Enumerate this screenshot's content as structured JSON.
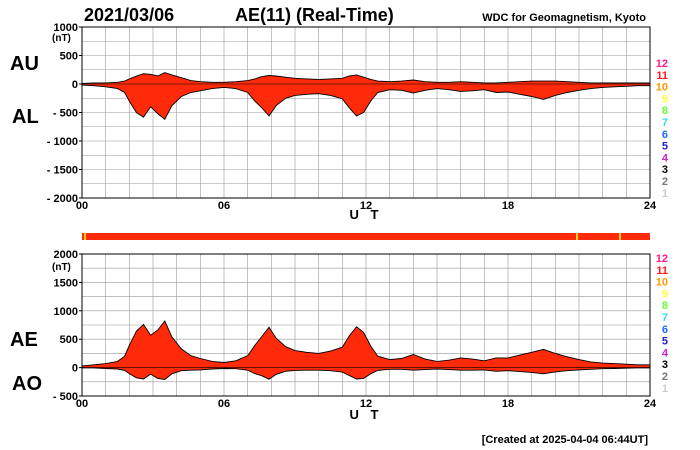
{
  "header": {
    "date": "2021/03/06",
    "title": "AE(11) (Real-Time)",
    "source": "WDC for Geomagnetism, Kyoto"
  },
  "footer": {
    "created": "[Created at 2025-04-04 06:44UT]"
  },
  "colors": {
    "fill": "#ff2a0a",
    "station_bar": "#ff2a0a",
    "station_bar_marks": "#ffd21e"
  },
  "station_legend": [
    {
      "label": "12",
      "color": "#ff1a8c"
    },
    {
      "label": "11",
      "color": "#ff1a1a"
    },
    {
      "label": "10",
      "color": "#ff9900"
    },
    {
      "label": "9",
      "color": "#ffff33"
    },
    {
      "label": "8",
      "color": "#66ff33"
    },
    {
      "label": "7",
      "color": "#33ddee"
    },
    {
      "label": "6",
      "color": "#1e6bff"
    },
    {
      "label": "5",
      "color": "#2222cc"
    },
    {
      "label": "4",
      "color": "#cc22cc"
    },
    {
      "label": "3",
      "color": "#000000"
    },
    {
      "label": "2",
      "color": "#777777"
    },
    {
      "label": "1",
      "color": "#cccccc"
    }
  ],
  "chart_data": [
    {
      "type": "area",
      "panel_labels": {
        "upper": "AU",
        "lower": "AL"
      },
      "ylabel": "(nT)",
      "xlabel": "U T",
      "xlim": [
        0,
        24
      ],
      "ylim": [
        -2000,
        1000
      ],
      "x_ticks": [
        "00",
        "06",
        "12",
        "18",
        "24"
      ],
      "y_ticks": [
        "1000",
        "500",
        "0",
        "- 500",
        "- 1000",
        "- 1500",
        "- 2000"
      ],
      "series": [
        {
          "name": "AU",
          "x": [
            0,
            0.5,
            1,
            1.5,
            1.8,
            2,
            2.3,
            2.6,
            2.9,
            3.2,
            3.5,
            3.8,
            4.2,
            4.6,
            5,
            5.5,
            6,
            6.5,
            7,
            7.3,
            7.6,
            7.9,
            8.2,
            8.6,
            9,
            9.5,
            10,
            10.5,
            11,
            11.3,
            11.6,
            11.9,
            12.2,
            12.5,
            13,
            13.5,
            14,
            14.5,
            15,
            15.5,
            16,
            16.5,
            17,
            17.5,
            18,
            18.5,
            19,
            19.5,
            20,
            20.5,
            21,
            21.5,
            22,
            22.5,
            23,
            23.5,
            24
          ],
          "values": [
            10,
            20,
            20,
            30,
            50,
            90,
            140,
            180,
            170,
            140,
            200,
            160,
            110,
            60,
            40,
            30,
            30,
            40,
            60,
            90,
            130,
            150,
            140,
            120,
            100,
            90,
            80,
            90,
            100,
            140,
            160,
            120,
            80,
            50,
            40,
            50,
            70,
            40,
            30,
            30,
            40,
            30,
            20,
            20,
            30,
            40,
            50,
            50,
            50,
            40,
            30,
            20,
            20,
            20,
            20,
            20,
            20
          ]
        },
        {
          "name": "AL",
          "x": [
            0,
            0.5,
            1,
            1.5,
            1.8,
            2,
            2.3,
            2.6,
            2.9,
            3.2,
            3.5,
            3.8,
            4.2,
            4.6,
            5,
            5.5,
            6,
            6.5,
            7,
            7.3,
            7.6,
            7.9,
            8.2,
            8.6,
            9,
            9.5,
            10,
            10.5,
            11,
            11.3,
            11.6,
            11.9,
            12.2,
            12.5,
            13,
            13.5,
            14,
            14.5,
            15,
            15.5,
            16,
            16.5,
            17,
            17.5,
            18,
            18.5,
            19,
            19.5,
            20,
            20.5,
            21,
            21.5,
            22,
            22.5,
            23,
            23.5,
            24
          ],
          "values": [
            -20,
            -30,
            -50,
            -80,
            -150,
            -300,
            -500,
            -580,
            -400,
            -520,
            -620,
            -380,
            -220,
            -150,
            -120,
            -80,
            -60,
            -80,
            -150,
            -300,
            -420,
            -560,
            -380,
            -250,
            -200,
            -180,
            -170,
            -200,
            -260,
            -420,
            -560,
            -500,
            -300,
            -150,
            -100,
            -110,
            -160,
            -110,
            -80,
            -100,
            -130,
            -120,
            -100,
            -150,
            -140,
            -180,
            -220,
            -270,
            -200,
            -150,
            -110,
            -80,
            -60,
            -50,
            -40,
            -30,
            -30
          ]
        }
      ]
    },
    {
      "type": "area",
      "panel_labels": {
        "upper": "AE",
        "lower": "AO"
      },
      "ylabel": "(nT)",
      "xlabel": "U T",
      "xlim": [
        0,
        24
      ],
      "ylim": [
        -500,
        2000
      ],
      "x_ticks": [
        "00",
        "06",
        "12",
        "18",
        "24"
      ],
      "y_ticks": [
        "2000",
        "1500",
        "1000",
        "500",
        "0",
        "- 500"
      ],
      "series": [
        {
          "name": "AE",
          "x": [
            0,
            0.5,
            1,
            1.5,
            1.8,
            2,
            2.3,
            2.6,
            2.9,
            3.2,
            3.5,
            3.8,
            4.2,
            4.6,
            5,
            5.5,
            6,
            6.5,
            7,
            7.3,
            7.6,
            7.9,
            8.2,
            8.6,
            9,
            9.5,
            10,
            10.5,
            11,
            11.3,
            11.6,
            11.9,
            12.2,
            12.5,
            13,
            13.5,
            14,
            14.5,
            15,
            15.5,
            16,
            16.5,
            17,
            17.5,
            18,
            18.5,
            19,
            19.5,
            20,
            20.5,
            21,
            21.5,
            22,
            22.5,
            23,
            23.5,
            24
          ],
          "values": [
            30,
            50,
            70,
            110,
            200,
            390,
            640,
            760,
            570,
            660,
            820,
            540,
            330,
            210,
            160,
            110,
            90,
            120,
            210,
            390,
            550,
            710,
            520,
            370,
            300,
            270,
            250,
            290,
            360,
            560,
            720,
            620,
            380,
            200,
            140,
            160,
            230,
            150,
            110,
            130,
            170,
            150,
            120,
            170,
            170,
            220,
            270,
            320,
            250,
            190,
            140,
            100,
            80,
            70,
            60,
            50,
            50
          ]
        },
        {
          "name": "AO",
          "x": [
            0,
            0.5,
            1,
            1.5,
            1.8,
            2,
            2.3,
            2.6,
            2.9,
            3.2,
            3.5,
            3.8,
            4.2,
            4.6,
            5,
            5.5,
            6,
            6.5,
            7,
            7.3,
            7.6,
            7.9,
            8.2,
            8.6,
            9,
            9.5,
            10,
            10.5,
            11,
            11.3,
            11.6,
            11.9,
            12.2,
            12.5,
            13,
            13.5,
            14,
            14.5,
            15,
            15.5,
            16,
            16.5,
            17,
            17.5,
            18,
            18.5,
            19,
            19.5,
            20,
            20.5,
            21,
            21.5,
            22,
            22.5,
            23,
            23.5,
            24
          ],
          "values": [
            -5,
            -5,
            -15,
            -25,
            -50,
            -105,
            -180,
            -200,
            -115,
            -190,
            -210,
            -110,
            -55,
            -45,
            -40,
            -25,
            -15,
            -20,
            -45,
            -105,
            -145,
            -205,
            -120,
            -65,
            -50,
            -45,
            -45,
            -55,
            -80,
            -140,
            -200,
            -190,
            -110,
            -50,
            -30,
            -30,
            -45,
            -35,
            -25,
            -35,
            -45,
            -45,
            -40,
            -65,
            -55,
            -70,
            -85,
            -110,
            -75,
            -55,
            -40,
            -30,
            -20,
            -15,
            -10,
            -5,
            -5
          ]
        }
      ]
    }
  ]
}
